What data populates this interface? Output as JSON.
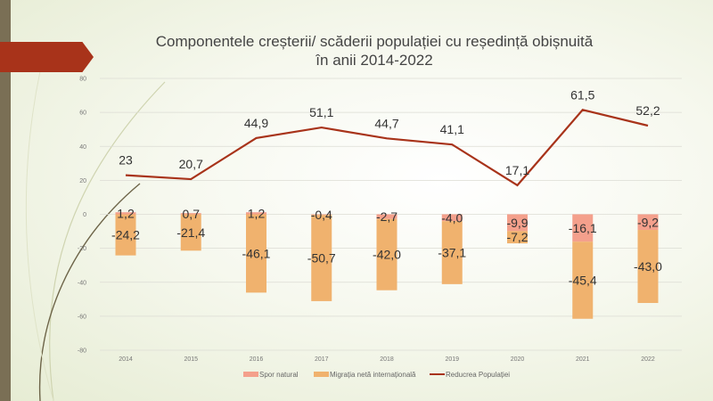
{
  "title_line1": "Componentele creșterii/ scăderii populației cu reședință obișnuită",
  "title_line2": "în anii 2014-2022",
  "chart_data": {
    "type": "bar",
    "title": "Componentele creșterii/ scăderii populației cu reședință obișnuită în anii 2014-2022",
    "categories": [
      "2014",
      "2015",
      "2016",
      "2017",
      "2018",
      "2019",
      "2020",
      "2021",
      "2022"
    ],
    "series": [
      {
        "name": "Spor natural",
        "type": "stacked-bar",
        "color": "#f4a08c",
        "values": [
          1.2,
          0.7,
          1.2,
          -0.4,
          -2.7,
          -4.0,
          -9.9,
          -16.1,
          -9.2
        ],
        "labels": [
          "1,2",
          "0,7",
          "1,2",
          "-0,4",
          "-2,7",
          "-4,0",
          "-9,9",
          "-16,1",
          "-9,2"
        ]
      },
      {
        "name": "Migrația netă internațională",
        "type": "stacked-bar",
        "color": "#f0b26e",
        "values": [
          -24.2,
          -21.4,
          -46.1,
          -50.7,
          -42.0,
          -37.1,
          -7.2,
          -45.4,
          -43.0
        ],
        "labels": [
          "-24,2",
          "-21,4",
          "-46,1",
          "-50,7",
          "-42,0",
          "-37,1",
          "-7,2",
          "-45,4",
          "-43,0"
        ]
      },
      {
        "name": "Reducrea Populației",
        "type": "line",
        "color": "#a8331a",
        "values": [
          23,
          20.7,
          44.9,
          51.1,
          44.7,
          41.1,
          17.1,
          61.5,
          52.2
        ],
        "labels": [
          "23",
          "20,7",
          "44,9",
          "51,1",
          "44,7",
          "41,1",
          "17,1",
          "61,5",
          "52,2"
        ]
      }
    ],
    "ylim": [
      -80,
      80
    ],
    "yticks": [
      "80",
      "60",
      "40",
      "20",
      "0",
      "-20",
      "-40",
      "-60",
      "-80"
    ],
    "ytick_values": [
      80,
      60,
      40,
      20,
      0,
      -20,
      -40,
      -60,
      -80
    ],
    "legend": "bottom",
    "grid": true
  }
}
